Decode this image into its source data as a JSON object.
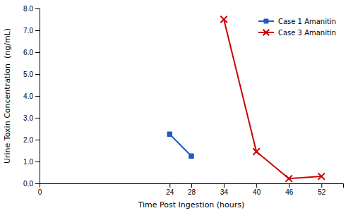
{
  "chart_data": {
    "type": "line",
    "xlabel": "Time Post Ingestion (hours)",
    "ylabel": "Urine Toxin Concentration  (ng/mL)",
    "series": [
      {
        "name": "Case 1 Amanitin",
        "color": "#1F5BC4",
        "marker": "square",
        "x": [
          24,
          28
        ],
        "values": [
          2.25,
          1.25
        ]
      },
      {
        "name": "Case 3 Amanitin",
        "color": "#CC0000",
        "marker": "x",
        "x": [
          34,
          40,
          46,
          52
        ],
        "values": [
          7.5,
          1.45,
          0.22,
          0.32
        ]
      }
    ],
    "xlim": [
      0,
      56
    ],
    "ylim": [
      0.0,
      8.0
    ],
    "xticks": [
      0,
      24,
      28,
      34,
      40,
      46,
      52
    ],
    "yticks": [
      {
        "value": 0,
        "label": "0.0"
      },
      {
        "value": 1,
        "label": "1.0"
      },
      {
        "value": 2,
        "label": "2.0"
      },
      {
        "value": 3,
        "label": "3.0"
      },
      {
        "value": 4,
        "label": "4.0"
      },
      {
        "value": 5,
        "label": "5.0"
      },
      {
        "value": 6,
        "label": "6.0"
      },
      {
        "value": 7,
        "label": "7.0"
      },
      {
        "value": 8,
        "label": "8.0"
      }
    ],
    "grid": false,
    "legend": "upper right"
  }
}
